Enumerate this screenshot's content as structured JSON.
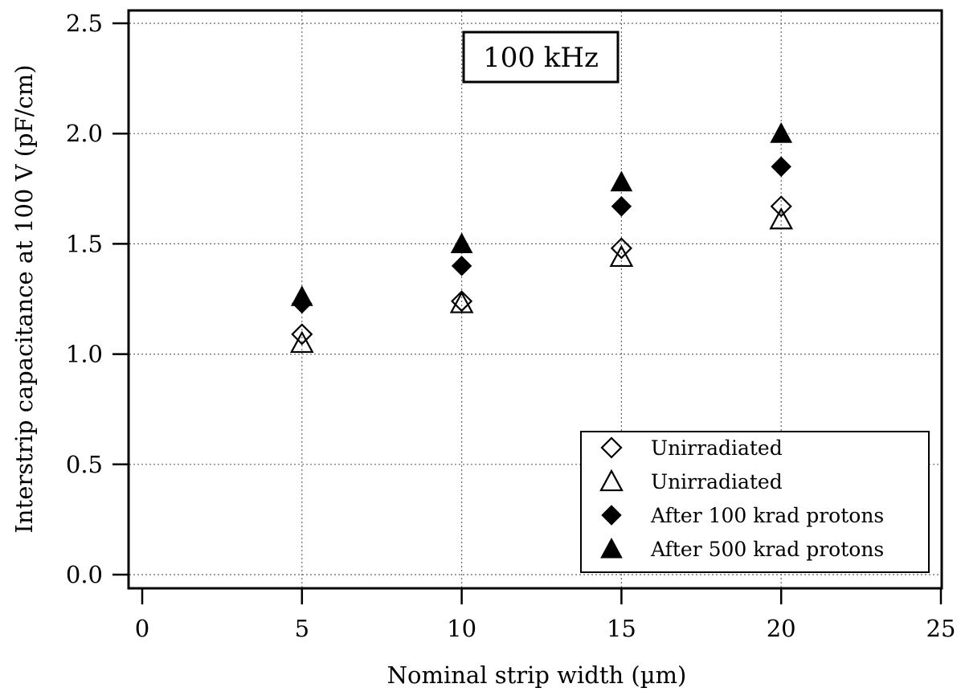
{
  "chart_data": {
    "type": "scatter",
    "annotation": "100 kHz",
    "xlabel": "Nominal strip width (µm)",
    "ylabel": "Interstrip capacitance at 100 V (pF/cm)",
    "xlim": [
      0,
      25
    ],
    "ylim": [
      0,
      2.5
    ],
    "xticks": [
      0,
      5,
      10,
      15,
      20,
      25
    ],
    "yticks": [
      0.0,
      0.5,
      1.0,
      1.5,
      2.0,
      2.5
    ],
    "xtick_labels": [
      "0",
      "5",
      "10",
      "15",
      "20",
      "25"
    ],
    "ytick_labels": [
      "0.0",
      "0.5",
      "1.0",
      "1.5",
      "2.0",
      "2.5"
    ],
    "grid": true,
    "legend_position": "bottom-right",
    "series": [
      {
        "name": "Unirradiated",
        "marker": "diamond-open",
        "x": [
          5,
          10,
          15,
          20
        ],
        "y": [
          1.09,
          1.24,
          1.48,
          1.67
        ]
      },
      {
        "name": "Unirradiated",
        "marker": "triangle-open",
        "x": [
          5,
          10,
          15,
          20
        ],
        "y": [
          1.05,
          1.23,
          1.44,
          1.61
        ]
      },
      {
        "name": "After 100 krad protons",
        "marker": "diamond-filled",
        "x": [
          5,
          10,
          15,
          20
        ],
        "y": [
          1.23,
          1.4,
          1.67,
          1.85
        ]
      },
      {
        "name": "After 500 krad protons",
        "marker": "triangle-filled",
        "x": [
          5,
          10,
          15,
          20
        ],
        "y": [
          1.26,
          1.5,
          1.78,
          2.0
        ]
      }
    ]
  }
}
